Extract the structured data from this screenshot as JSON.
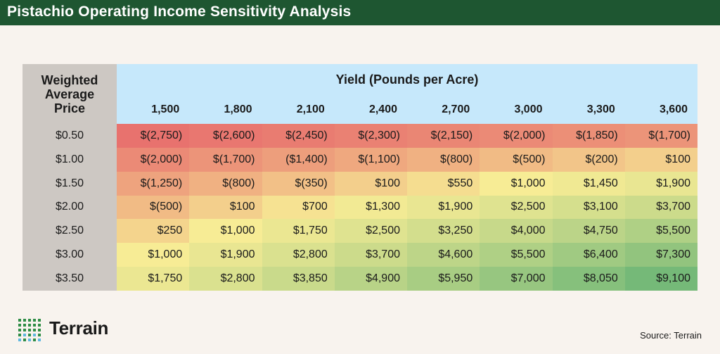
{
  "title": "Pistachio Operating Income Sensitivity Analysis",
  "corner_label": "Weighted Average Price",
  "source": "Source: Terrain",
  "logo_text": "Terrain",
  "chart_data": {
    "type": "table",
    "title": "Pistachio Operating Income Sensitivity Analysis",
    "column_header": "Yield (Pounds per Acre)",
    "row_header": "Weighted Average Price",
    "columns": [
      "1,500",
      "1,800",
      "2,100",
      "2,400",
      "2,700",
      "3,000",
      "3,300",
      "3,600"
    ],
    "rows": [
      "$0.50",
      "$1.00",
      "$1.50",
      "$2.00",
      "$2.50",
      "$3.00",
      "$3.50"
    ],
    "values": [
      [
        -2750,
        -2600,
        -2450,
        -2300,
        -2150,
        -2000,
        -1850,
        -1700
      ],
      [
        -2000,
        -1700,
        -1400,
        -1100,
        -800,
        -500,
        -200,
        100
      ],
      [
        -1250,
        -800,
        -350,
        100,
        550,
        1000,
        1450,
        1900
      ],
      [
        -500,
        100,
        700,
        1300,
        1900,
        2500,
        3100,
        3700
      ],
      [
        250,
        1000,
        1750,
        2500,
        3250,
        4000,
        4750,
        5500
      ],
      [
        1000,
        1900,
        2800,
        3700,
        4600,
        5500,
        6400,
        7300
      ],
      [
        1750,
        2800,
        3850,
        4900,
        5950,
        7000,
        8050,
        9100
      ]
    ],
    "display": [
      [
        "$(2,750)",
        "$(2,600)",
        "$(2,450)",
        "$(2,300)",
        "$(2,150)",
        "$(2,000)",
        "$(1,850)",
        "$(1,700)"
      ],
      [
        "$(2,000)",
        "$(1,700)",
        "($1,400)",
        "$(1,100)",
        "$(800)",
        "$(500)",
        "$(200)",
        "$100"
      ],
      [
        "$(1,250)",
        "$(800)",
        "$(350)",
        "$100",
        "$550",
        "$1,000",
        "$1,450",
        "$1,900"
      ],
      [
        "$(500)",
        "$100",
        "$700",
        "$1,300",
        "$1,900",
        "$2,500",
        "$3,100",
        "$3,700"
      ],
      [
        "$250",
        "$1,000",
        "$1,750",
        "$2,500",
        "$3,250",
        "$4,000",
        "$4,750",
        "$5,500"
      ],
      [
        "$1,000",
        "$1,900",
        "$2,800",
        "$3,700",
        "$4,600",
        "$5,500",
        "$6,400",
        "$7,300"
      ],
      [
        "$1,750",
        "$2,800",
        "$3,850",
        "$4,900",
        "$5,950",
        "$7,000",
        "$8,050",
        "$9,100"
      ]
    ]
  },
  "colors": {
    "title_bar": "#1e5631",
    "header_blue": "#c6e8fb",
    "row_header_gray": "#cdc8c3",
    "scale_low": "#e8726e",
    "scale_mid": "#f7ec95",
    "scale_high": "#75b978"
  }
}
